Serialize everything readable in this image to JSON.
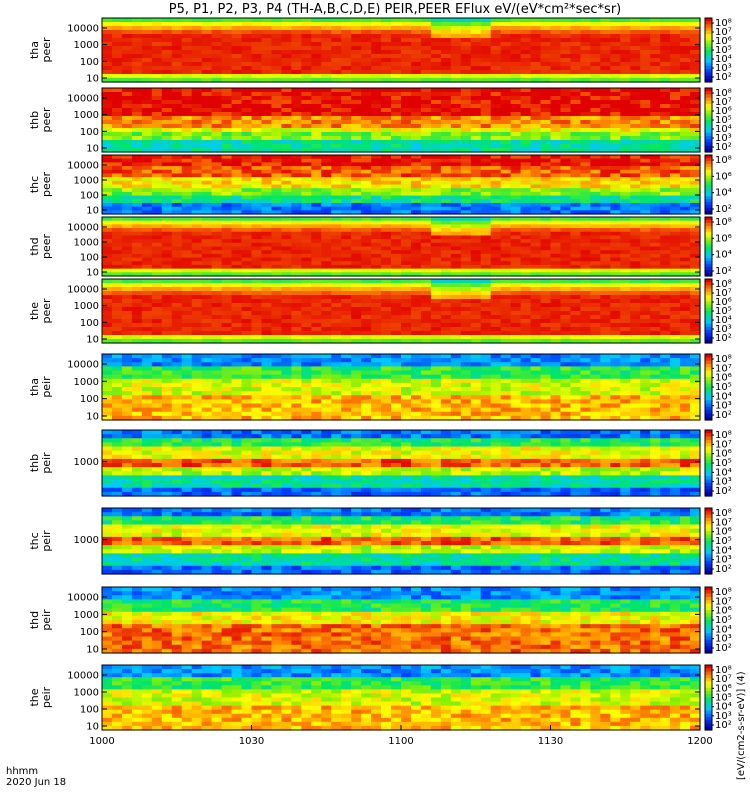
{
  "chart_data": {
    "type": "heatmap",
    "title": "P5, P1, P2, P3, P4 (TH-A,B,C,D,E) PEIR,PEER EFlux eV/(eV*cm²*sec*sr)",
    "x_ticks": [
      "1000",
      "1030",
      "1100",
      "1130",
      "1200"
    ],
    "x_range": [
      "1000",
      "1200"
    ],
    "footer_label": "hhmm",
    "footer_date": "2020 Jun 18",
    "colorbar_ticks": [
      "10⁸",
      "10⁷",
      "10⁶",
      "10⁵",
      "10⁴",
      "10³",
      "10²"
    ],
    "colorbar_ticks_short": [
      "10⁸",
      "10⁶",
      "10⁴",
      "10²"
    ],
    "colorbar_label": "[eV/(cm2-s-sr-eV)] (4)",
    "colors": {
      "low": "#0000b0",
      "mid_low": "#00c0ff",
      "mid": "#00e060",
      "mid_high": "#ffff00",
      "high": "#ff8000",
      "peak": "#e00000"
    },
    "panels": [
      {
        "probe": "tha",
        "instrument": "peer",
        "y_ticks": [
          "10000",
          "1000",
          "100",
          "10"
        ],
        "profile": "electron_a"
      },
      {
        "probe": "thb",
        "instrument": "peer",
        "y_ticks": [
          "10000",
          "1000",
          "100",
          "10"
        ],
        "profile": "electron_b"
      },
      {
        "probe": "thc",
        "instrument": "peer",
        "y_ticks": [
          "10000",
          "1000",
          "100",
          "10"
        ],
        "profile": "electron_c"
      },
      {
        "probe": "thd",
        "instrument": "peer",
        "y_ticks": [
          "10000",
          "1000",
          "100",
          "10"
        ],
        "profile": "electron_a"
      },
      {
        "probe": "the",
        "instrument": "peer",
        "y_ticks": [
          "10000",
          "1000",
          "100",
          "10"
        ],
        "profile": "electron_a"
      },
      {
        "probe": "tha",
        "instrument": "peir",
        "y_ticks": [
          "10000",
          "1000",
          "100",
          "10"
        ],
        "profile": "ion_a"
      },
      {
        "probe": "thb",
        "instrument": "peir",
        "y_ticks": [
          "1000"
        ],
        "profile": "ion_b"
      },
      {
        "probe": "thc",
        "instrument": "peir",
        "y_ticks": [
          "1000"
        ],
        "profile": "ion_b"
      },
      {
        "probe": "thd",
        "instrument": "peir",
        "y_ticks": [
          "10000",
          "1000",
          "100",
          "10"
        ],
        "profile": "ion_d"
      },
      {
        "probe": "the",
        "instrument": "peir",
        "y_ticks": [
          "10000",
          "1000",
          "100",
          "10"
        ],
        "profile": "ion_a"
      }
    ]
  }
}
